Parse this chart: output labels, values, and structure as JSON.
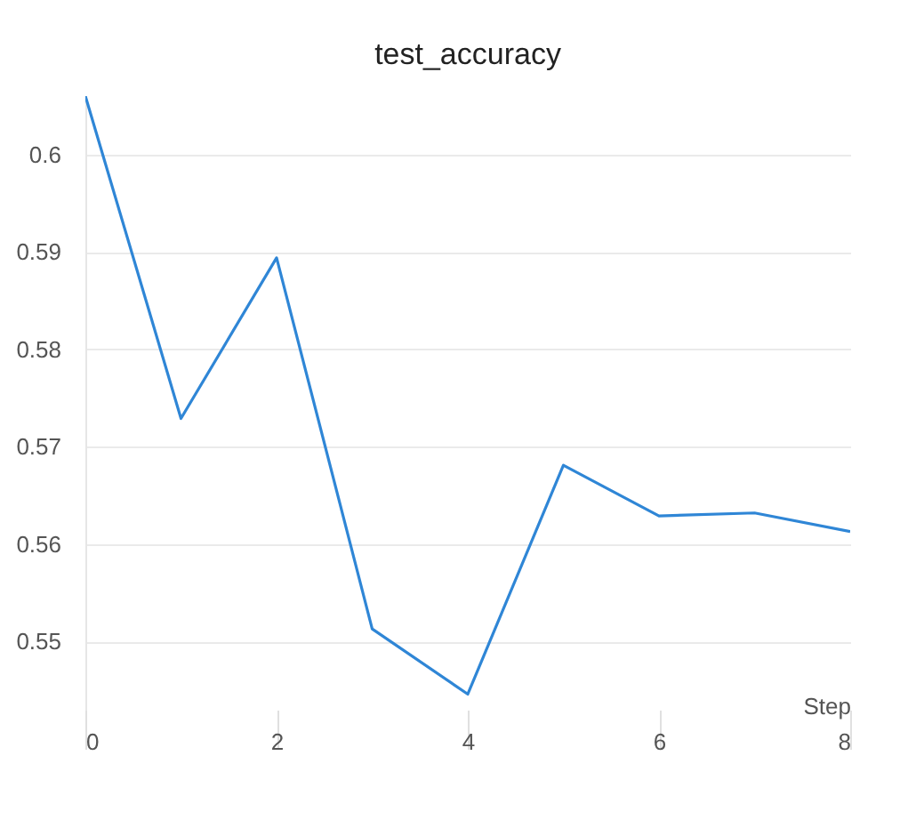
{
  "chart_data": {
    "type": "line",
    "title": "test_accuracy",
    "xlabel": "Step",
    "x": [
      0,
      1,
      2,
      3,
      4,
      5,
      6,
      7,
      8
    ],
    "series": [
      {
        "color": "#2f86d6",
        "values": [
          0.606,
          0.5729,
          0.5894,
          0.5513,
          0.5446,
          0.5681,
          0.5629,
          0.5632,
          0.5613
        ]
      }
    ],
    "xlim": [
      0,
      8
    ],
    "xticks": [
      0,
      2,
      4,
      6,
      8
    ],
    "ylim": [
      0.543,
      0.606
    ],
    "yticks": [
      0.55,
      0.56,
      0.57,
      0.58,
      0.59,
      0.6
    ],
    "grid": "y"
  }
}
